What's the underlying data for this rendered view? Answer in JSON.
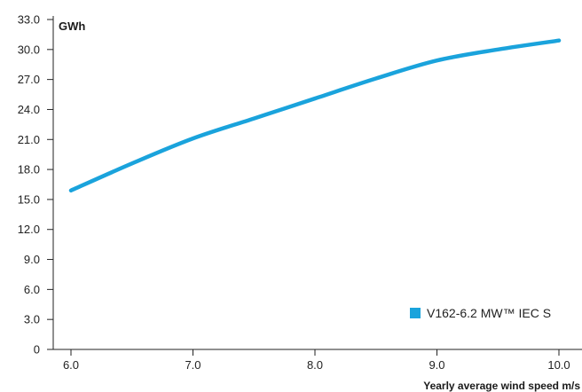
{
  "chart_data": {
    "type": "line",
    "title": "",
    "ylabel": "GWh",
    "xlabel": "Yearly average wind speed m/s",
    "x": [
      6.0,
      6.5,
      7.0,
      7.5,
      8.0,
      8.5,
      9.0,
      9.5,
      10.0
    ],
    "x_ticks": [
      "6.0",
      "7.0",
      "8.0",
      "9.0",
      "10.0"
    ],
    "x_tick_values": [
      6.0,
      7.0,
      8.0,
      9.0,
      10.0
    ],
    "y_ticks": [
      "0",
      "3.0",
      "6.0",
      "9.0",
      "12.0",
      "15.0",
      "18.0",
      "21.0",
      "24.0",
      "27.0",
      "30.0",
      "33.0"
    ],
    "y_tick_values": [
      0,
      3,
      6,
      9,
      12,
      15,
      18,
      21,
      24,
      27,
      30,
      33
    ],
    "xlim": [
      6.0,
      10.0
    ],
    "ylim": [
      0,
      33
    ],
    "grid": false,
    "legend_position": "bottom-right",
    "series": [
      {
        "name": "V162-6.2 MW™ IEC S",
        "color": "#1aa3dc",
        "values": [
          15.9,
          18.6,
          21.1,
          23.1,
          25.1,
          27.1,
          28.9,
          30.0,
          30.9
        ]
      }
    ]
  }
}
